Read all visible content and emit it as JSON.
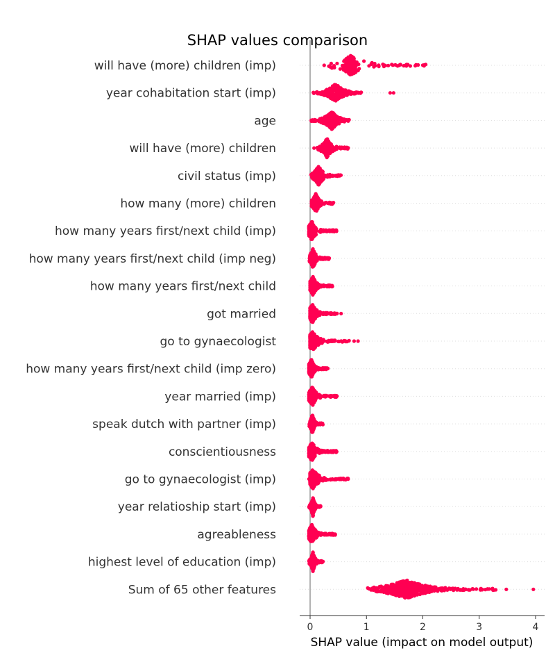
{
  "chart_data": {
    "type": "scatter",
    "subtype": "shap-beeswarm",
    "title": "SHAP values comparison",
    "xlabel": "SHAP value (impact on model output)",
    "xlim": [
      -0.18,
      4.15
    ],
    "xticks": [
      0,
      1,
      2,
      3,
      4
    ],
    "grid": "dotted horizontal per feature",
    "legend": "none",
    "colors": {
      "points": "#ff0052",
      "zero_line": "#999999",
      "axis": "#333333",
      "grid": "#dddddd"
    },
    "features": [
      {
        "name": "will have (more) children (imp)",
        "dense_range": [
          0.32,
          0.9
        ],
        "tail_max": 2.05,
        "outliers": [
          0.25
        ],
        "center": 0.72
      },
      {
        "name": "year cohabitation start (imp)",
        "dense_range": [
          0.05,
          0.9
        ],
        "tail_max": 0.92,
        "outliers": [
          1.42,
          1.48
        ],
        "center": 0.45
      },
      {
        "name": "age",
        "dense_range": [
          0.0,
          0.68
        ],
        "tail_max": 0.72,
        "outliers": [],
        "center": 0.38
      },
      {
        "name": "will have (more) children",
        "dense_range": [
          0.12,
          0.65
        ],
        "tail_max": 0.68,
        "outliers": [
          0.07
        ],
        "center": 0.3
      },
      {
        "name": "civil status (imp)",
        "dense_range": [
          0.0,
          0.5
        ],
        "tail_max": 0.55,
        "outliers": [],
        "center": 0.15
      },
      {
        "name": "how many (more) children",
        "dense_range": [
          0.02,
          0.4
        ],
        "tail_max": 0.42,
        "outliers": [],
        "center": 0.1
      },
      {
        "name": "how many years first/next child (imp)",
        "dense_range": [
          -0.02,
          0.45
        ],
        "tail_max": 0.47,
        "outliers": [],
        "center": 0.03
      },
      {
        "name": "how many years first/next child (imp neg)",
        "dense_range": [
          -0.02,
          0.32
        ],
        "tail_max": 0.34,
        "outliers": [],
        "center": 0.05
      },
      {
        "name": "how many years first/next child",
        "dense_range": [
          0.0,
          0.4
        ],
        "tail_max": 0.4,
        "outliers": [],
        "center": 0.05
      },
      {
        "name": "got married",
        "dense_range": [
          0.0,
          0.48
        ],
        "tail_max": 0.48,
        "outliers": [
          0.55
        ],
        "center": 0.04
      },
      {
        "name": "go to gynaecologist",
        "dense_range": [
          0.0,
          0.7
        ],
        "tail_max": 0.7,
        "outliers": [
          0.78,
          0.85
        ],
        "center": 0.04
      },
      {
        "name": "how many years first/next child (imp zero)",
        "dense_range": [
          -0.02,
          0.32
        ],
        "tail_max": 0.32,
        "outliers": [],
        "center": 0.02
      },
      {
        "name": "year married (imp)",
        "dense_range": [
          -0.02,
          0.48
        ],
        "tail_max": 0.48,
        "outliers": [],
        "center": 0.04
      },
      {
        "name": "speak dutch with partner (imp)",
        "dense_range": [
          -0.02,
          0.22
        ],
        "tail_max": 0.23,
        "outliers": [],
        "center": 0.04
      },
      {
        "name": "conscientiousness",
        "dense_range": [
          -0.02,
          0.42
        ],
        "tail_max": 0.48,
        "outliers": [],
        "center": 0.03
      },
      {
        "name": "go to gynaecologist (imp)",
        "dense_range": [
          0.0,
          0.68
        ],
        "tail_max": 0.68,
        "outliers": [
          -0.02
        ],
        "center": 0.05
      },
      {
        "name": "year relatioship start (imp)",
        "dense_range": [
          -0.02,
          0.18
        ],
        "tail_max": 0.19,
        "outliers": [],
        "center": 0.05
      },
      {
        "name": "agreableness",
        "dense_range": [
          -0.02,
          0.45
        ],
        "tail_max": 0.45,
        "outliers": [],
        "center": 0.03
      },
      {
        "name": "highest level of education (imp)",
        "dense_range": [
          -0.02,
          0.22
        ],
        "tail_max": 0.23,
        "outliers": [],
        "center": 0.05
      },
      {
        "name": "Sum of 65 other features",
        "dense_range": [
          1.0,
          3.3
        ],
        "tail_max": 3.3,
        "outliers": [
          3.48,
          3.96
        ],
        "center": 1.7
      }
    ]
  }
}
